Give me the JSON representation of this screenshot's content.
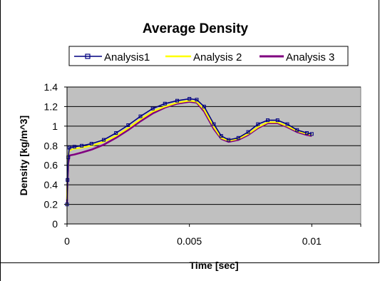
{
  "chart_data": {
    "type": "line",
    "title": "Average Density",
    "xlabel": "Time [sec]",
    "ylabel": "Density [kg/m^3]",
    "xlim": [
      0,
      0.012
    ],
    "ylim": [
      0,
      1.4
    ],
    "x_ticks": [
      "0",
      "0.005",
      "0.01"
    ],
    "y_ticks": [
      "0",
      "0.2",
      "0.4",
      "0.6",
      "0.8",
      "1",
      "1.2",
      "1.4"
    ],
    "grid": "horizontal",
    "plot_background": "#c0c0c0",
    "legend_position": "top",
    "series": [
      {
        "name": "Analysis1",
        "color": "#000080",
        "marker": "square",
        "x": [
          0,
          2e-05,
          5e-05,
          0.0001,
          0.0003,
          0.0006,
          0.001,
          0.0015,
          0.002,
          0.0025,
          0.003,
          0.0035,
          0.004,
          0.0045,
          0.005,
          0.0053,
          0.0056,
          0.006,
          0.0063,
          0.0066,
          0.007,
          0.0074,
          0.0078,
          0.0082,
          0.0086,
          0.009,
          0.0094,
          0.0098,
          0.01
        ],
        "y": [
          0.2,
          0.45,
          0.68,
          0.78,
          0.79,
          0.8,
          0.82,
          0.86,
          0.93,
          1.01,
          1.1,
          1.18,
          1.23,
          1.26,
          1.28,
          1.27,
          1.2,
          1.02,
          0.9,
          0.86,
          0.88,
          0.94,
          1.02,
          1.06,
          1.06,
          1.02,
          0.96,
          0.93,
          0.92
        ]
      },
      {
        "name": "Analysis 2",
        "color": "#ffff00",
        "marker": "none",
        "x": [
          0,
          2e-05,
          5e-05,
          0.0001,
          0.0003,
          0.0006,
          0.001,
          0.0015,
          0.002,
          0.0025,
          0.003,
          0.0035,
          0.004,
          0.0045,
          0.005,
          0.0053,
          0.0056,
          0.006,
          0.0063,
          0.0066,
          0.007,
          0.0074,
          0.0078,
          0.0082,
          0.0086,
          0.009,
          0.0094,
          0.0098,
          0.01
        ],
        "y": [
          0.25,
          0.5,
          0.7,
          0.75,
          0.77,
          0.78,
          0.8,
          0.84,
          0.9,
          0.98,
          1.07,
          1.15,
          1.2,
          1.24,
          1.26,
          1.25,
          1.17,
          0.99,
          0.88,
          0.85,
          0.87,
          0.92,
          0.99,
          1.04,
          1.04,
          1.0,
          0.95,
          0.92,
          0.91
        ]
      },
      {
        "name": "Analysis 3",
        "color": "#800080",
        "marker": "none",
        "x": [
          0,
          2e-05,
          5e-05,
          0.0001,
          0.0003,
          0.0006,
          0.001,
          0.0015,
          0.002,
          0.0025,
          0.003,
          0.0035,
          0.004,
          0.0045,
          0.005,
          0.0053,
          0.0056,
          0.006,
          0.0063,
          0.0066,
          0.007,
          0.0074,
          0.0078,
          0.0082,
          0.0086,
          0.009,
          0.0094,
          0.0098,
          0.01
        ],
        "y": [
          0.22,
          0.42,
          0.62,
          0.7,
          0.71,
          0.73,
          0.76,
          0.81,
          0.88,
          0.96,
          1.05,
          1.13,
          1.19,
          1.23,
          1.25,
          1.24,
          1.15,
          0.97,
          0.87,
          0.84,
          0.86,
          0.91,
          0.98,
          1.03,
          1.03,
          0.99,
          0.94,
          0.91,
          0.9
        ]
      }
    ]
  }
}
